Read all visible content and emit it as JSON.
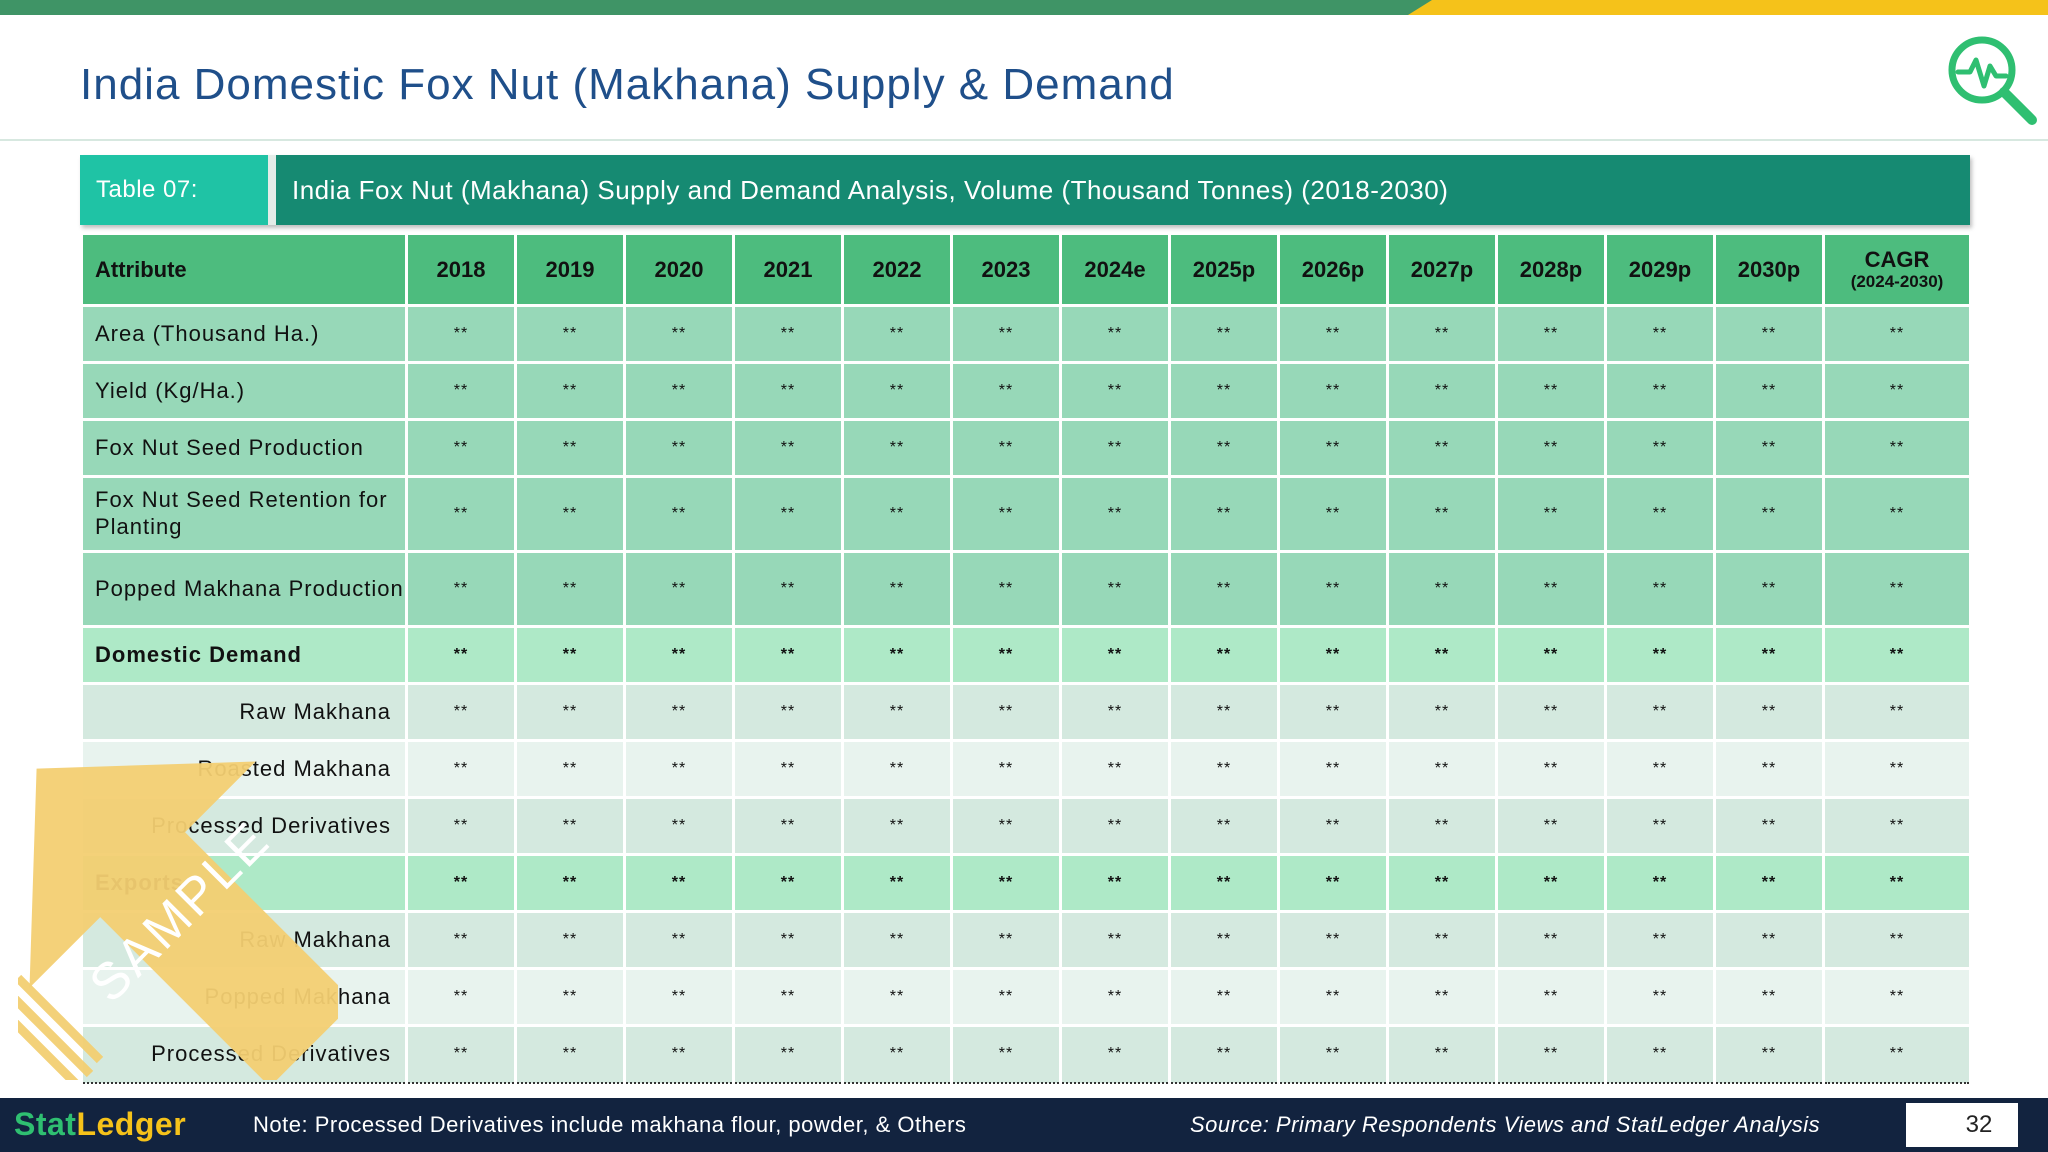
{
  "header": {
    "title": "India Domestic Fox Nut (Makhana) Supply & Demand",
    "logo_icon": "magnifier-pulse-icon",
    "accent_color": "#3f9466",
    "highlight_color": "#f5c21a"
  },
  "table": {
    "label": "Table 07:",
    "title": "India Fox Nut (Makhana) Supply and Demand Analysis, Volume (Thousand Tonnes) (2018-2030)",
    "columns": [
      "Attribute",
      "2018",
      "2019",
      "2020",
      "2021",
      "2022",
      "2023",
      "2024e",
      "2025p",
      "2026p",
      "2027p",
      "2028p",
      "2029p",
      "2030p"
    ],
    "cagr_header": "CAGR",
    "cagr_subheader": "(2024-2030)",
    "rows": [
      {
        "label": "Area (Thousand Ha.)",
        "type": "supply",
        "values": [
          "**",
          "**",
          "**",
          "**",
          "**",
          "**",
          "**",
          "**",
          "**",
          "**",
          "**",
          "**",
          "**",
          "**"
        ]
      },
      {
        "label": "Yield (Kg/Ha.)",
        "type": "supply",
        "values": [
          "**",
          "**",
          "**",
          "**",
          "**",
          "**",
          "**",
          "**",
          "**",
          "**",
          "**",
          "**",
          "**",
          "**"
        ]
      },
      {
        "label": "Fox Nut Seed Production",
        "type": "supply",
        "values": [
          "**",
          "**",
          "**",
          "**",
          "**",
          "**",
          "**",
          "**",
          "**",
          "**",
          "**",
          "**",
          "**",
          "**"
        ]
      },
      {
        "label": "Fox Nut Seed Retention for Planting",
        "type": "supply",
        "values": [
          "**",
          "**",
          "**",
          "**",
          "**",
          "**",
          "**",
          "**",
          "**",
          "**",
          "**",
          "**",
          "**",
          "**"
        ]
      },
      {
        "label": "Popped Makhana Production",
        "type": "supply",
        "values": [
          "**",
          "**",
          "**",
          "**",
          "**",
          "**",
          "**",
          "**",
          "**",
          "**",
          "**",
          "**",
          "**",
          "**"
        ]
      },
      {
        "label": "Domestic Demand",
        "type": "section",
        "values": [
          "**",
          "**",
          "**",
          "**",
          "**",
          "**",
          "**",
          "**",
          "**",
          "**",
          "**",
          "**",
          "**",
          "**"
        ]
      },
      {
        "label": "Raw Makhana",
        "type": "sub-a",
        "values": [
          "**",
          "**",
          "**",
          "**",
          "**",
          "**",
          "**",
          "**",
          "**",
          "**",
          "**",
          "**",
          "**",
          "**"
        ]
      },
      {
        "label": "Roasted Makhana",
        "type": "sub-b",
        "values": [
          "**",
          "**",
          "**",
          "**",
          "**",
          "**",
          "**",
          "**",
          "**",
          "**",
          "**",
          "**",
          "**",
          "**"
        ]
      },
      {
        "label": "Processed Derivatives",
        "type": "sub-a",
        "values": [
          "**",
          "**",
          "**",
          "**",
          "**",
          "**",
          "**",
          "**",
          "**",
          "**",
          "**",
          "**",
          "**",
          "**"
        ]
      },
      {
        "label": "Exports",
        "type": "section",
        "values": [
          "**",
          "**",
          "**",
          "**",
          "**",
          "**",
          "**",
          "**",
          "**",
          "**",
          "**",
          "**",
          "**",
          "**"
        ]
      },
      {
        "label": "Raw Makhana",
        "type": "sub-a",
        "values": [
          "**",
          "**",
          "**",
          "**",
          "**",
          "**",
          "**",
          "**",
          "**",
          "**",
          "**",
          "**",
          "**",
          "**"
        ]
      },
      {
        "label": "Popped Makhana",
        "type": "sub-b",
        "values": [
          "**",
          "**",
          "**",
          "**",
          "**",
          "**",
          "**",
          "**",
          "**",
          "**",
          "**",
          "**",
          "**",
          "**"
        ]
      },
      {
        "label": "Processed Derivatives",
        "type": "sub-a",
        "values": [
          "**",
          "**",
          "**",
          "**",
          "**",
          "**",
          "**",
          "**",
          "**",
          "**",
          "**",
          "**",
          "**",
          "**"
        ]
      }
    ]
  },
  "watermark": {
    "text": "SAMPLE",
    "icon": "sample-arrow-icon"
  },
  "footer": {
    "brand_stat": "Stat",
    "brand_ledger": "Ledger",
    "note": "Note: Processed Derivatives include makhana flour, powder, & Others",
    "source": "Source: Primary Respondents Views and StatLedger Analysis",
    "page_number": "32"
  }
}
